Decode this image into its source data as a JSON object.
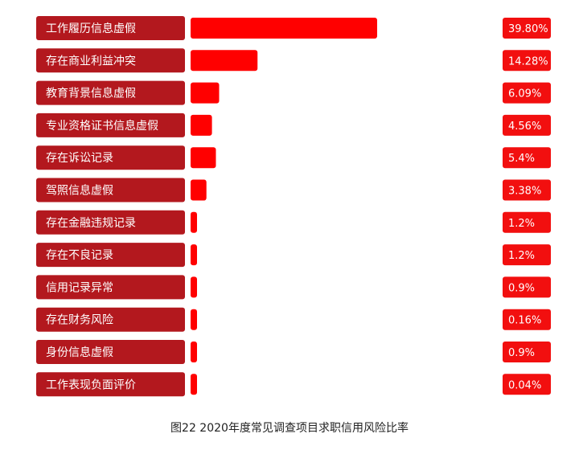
{
  "caption": "图22   2020年度常见调查项目求职信用风险比率",
  "chart_data": {
    "type": "bar",
    "orientation": "horizontal",
    "categories": [
      "工作履历信息虚假",
      "存在商业利益冲突",
      "教育背景信息虚假",
      "专业资格证书信息虚假",
      "存在诉讼记录",
      "驾照信息虚假",
      "存在金融违规记录",
      "存在不良记录",
      "信用记录异常",
      "存在财务风险",
      "身份信息虚假",
      "工作表现负面评价"
    ],
    "values": [
      39.8,
      14.28,
      6.09,
      4.56,
      5.4,
      3.38,
      1.2,
      1.2,
      0.9,
      0.16,
      0.9,
      0.04
    ],
    "value_labels": [
      "39.80%",
      "14.28%",
      "6.09%",
      "4.56%",
      "5.4%",
      "3.38%",
      "1.2%",
      "1.2%",
      "0.9%",
      "0.16%",
      "0.9%",
      "0.04%"
    ],
    "unit": "%",
    "colors": {
      "label_box": "#b3181e",
      "bar": "#ff0000",
      "value_box": "#f20f0f"
    }
  }
}
